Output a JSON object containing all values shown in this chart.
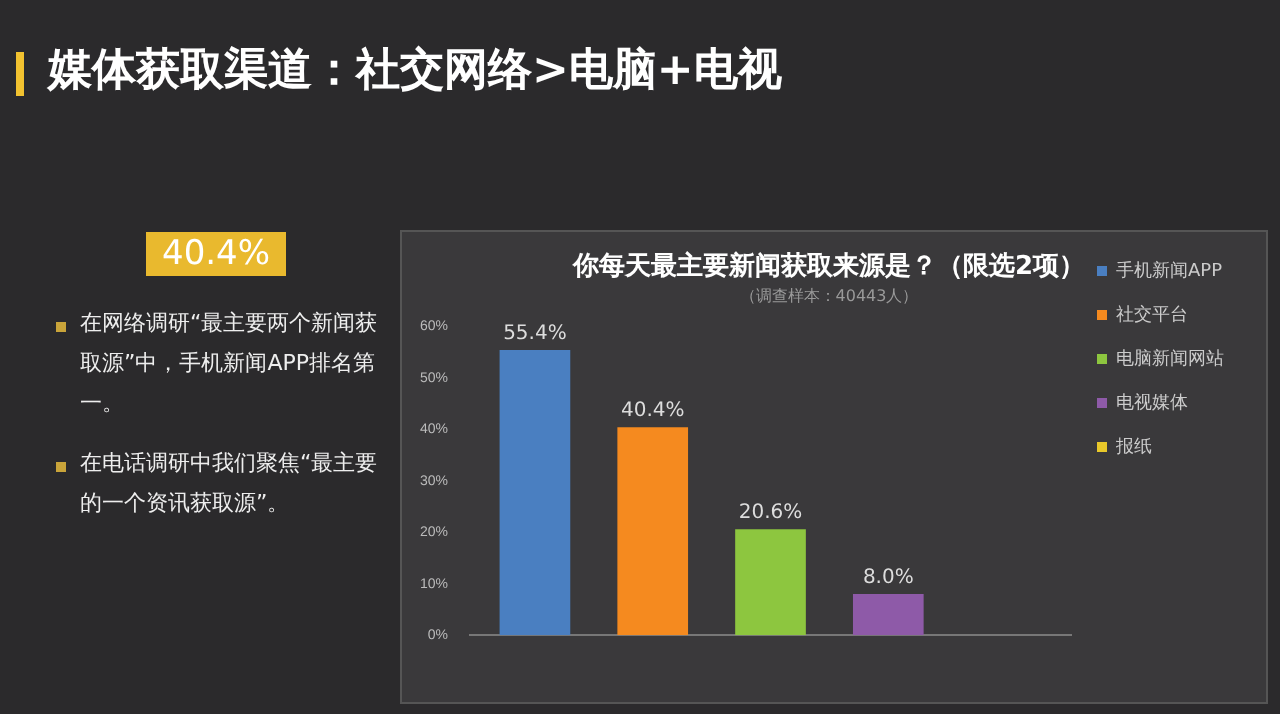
{
  "chart_data": {
    "type": "bar",
    "title": "你每天最主要新闻获取来源是？（限选2项）",
    "subtitle": "（调查样本：40443人）",
    "categories": [
      null
    ],
    "series": [
      {
        "name": "手机新闻APP",
        "color": "#4a7fc1",
        "values": [
          55.4
        ],
        "value_labels": [
          "55.4%"
        ]
      },
      {
        "name": "社交平台",
        "color": "#f58a1f",
        "values": [
          40.4
        ],
        "value_labels": [
          "40.4%"
        ]
      },
      {
        "name": "电脑新闻网站",
        "color": "#8dc63f",
        "values": [
          20.6
        ],
        "value_labels": [
          "20.6%"
        ]
      },
      {
        "name": "电视媒体",
        "color": "#8e5aa8",
        "values": [
          8.0
        ],
        "value_labels": [
          "8.0%"
        ]
      },
      {
        "name": "报纸",
        "color": "#e8c82a",
        "values": [
          null
        ],
        "value_labels": [
          null
        ]
      }
    ],
    "ylim": [
      0,
      60
    ],
    "yticks": [
      {
        "value": 0,
        "label": "0%"
      },
      {
        "value": 10,
        "label": "10%"
      },
      {
        "value": 20,
        "label": "20%"
      },
      {
        "value": 30,
        "label": "30%"
      },
      {
        "value": 40,
        "label": "40%"
      },
      {
        "value": 50,
        "label": "50%"
      },
      {
        "value": 60,
        "label": "60%"
      }
    ],
    "grid": false,
    "legend": "right",
    "annotations": [
      "媒体获取渠道：社交网络>电脑+电视",
      "40.4%",
      "在网络调研“最主要两个新闻获取源”中，手机新闻APP排名第一。",
      "在电话调研中我们聚焦“最主要的一个资讯获取源”。"
    ]
  }
}
